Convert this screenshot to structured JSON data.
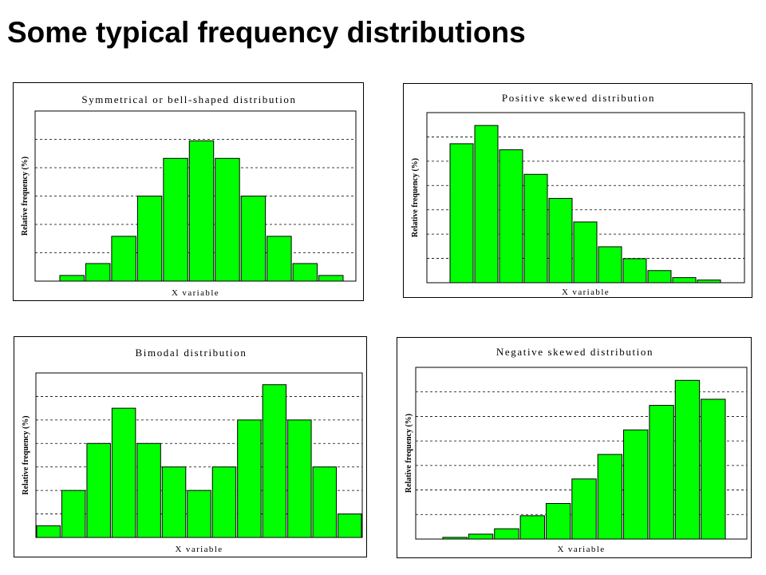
{
  "page": {
    "title": "Some typical frequency distributions"
  },
  "colors": {
    "bar_fill": "#00ff00",
    "bar_stroke": "#000000",
    "grid": "#000000",
    "frame": "#000000"
  },
  "chart_data": [
    {
      "type": "bar",
      "title": "Symmetrical or bell-shaped distribution",
      "xlabel": "X variable",
      "ylabel": "Relative frequency (%)",
      "grid": true,
      "ylim": [
        0,
        6
      ],
      "values": [
        0.2,
        0.62,
        1.58,
        3.0,
        4.33,
        4.95,
        4.33,
        3.0,
        1.58,
        0.62,
        0.2
      ]
    },
    {
      "type": "bar",
      "title": "Positive skewed distribution",
      "xlabel": "X variable",
      "ylabel": "Relative frequency (%)",
      "grid": true,
      "ylim": [
        0,
        7
      ],
      "values": [
        5.72,
        6.47,
        5.47,
        4.46,
        3.47,
        2.5,
        1.48,
        0.99,
        0.5,
        0.21,
        0.11
      ]
    },
    {
      "type": "bar",
      "title": "Bimodal distribution",
      "xlabel": "X variable",
      "ylabel": "Relative frequency (%)",
      "grid": true,
      "ylim": [
        0,
        7
      ],
      "values": [
        0.5,
        2.0,
        4.0,
        5.5,
        4.0,
        3.0,
        2.0,
        3.0,
        5.0,
        6.5,
        5.0,
        3.0,
        1.0
      ]
    },
    {
      "type": "bar",
      "title": "Negative skewed distribution",
      "xlabel": "X variable",
      "ylabel": "Relative frequency (%)",
      "grid": true,
      "ylim": [
        0,
        7
      ],
      "values": [
        0.07,
        0.2,
        0.42,
        0.95,
        1.45,
        2.45,
        3.45,
        4.45,
        5.45,
        6.47,
        5.7
      ]
    }
  ]
}
